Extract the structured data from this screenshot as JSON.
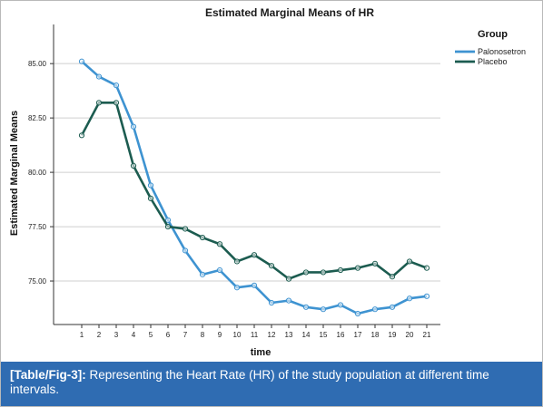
{
  "chart_data": {
    "type": "line",
    "title": "Estimated Marginal Means of HR",
    "xlabel": "time",
    "ylabel": "Estimated Marginal Means",
    "categories": [
      "1",
      "2",
      "3",
      "4",
      "5",
      "6",
      "7",
      "8",
      "9",
      "10",
      "11",
      "12",
      "13",
      "14",
      "15",
      "16",
      "17",
      "18",
      "19",
      "20",
      "21"
    ],
    "yticks": [
      "75.00",
      "77.50",
      "80.00",
      "82.50",
      "85.00"
    ],
    "ylim": [
      73.0,
      86.8
    ],
    "grid": "horizontal",
    "legend_title": "Group",
    "legend_position": "top-right",
    "series": [
      {
        "name": "Palonosetron",
        "color": "#3e93d1",
        "values": [
          85.1,
          84.4,
          84.0,
          82.1,
          79.4,
          77.8,
          76.4,
          75.3,
          75.5,
          74.7,
          74.8,
          74.0,
          74.1,
          73.8,
          73.7,
          73.9,
          73.5,
          73.7,
          73.8,
          74.2,
          74.3
        ]
      },
      {
        "name": "Placebo",
        "color": "#1c5c50",
        "values": [
          81.7,
          83.2,
          83.2,
          80.3,
          78.8,
          77.5,
          77.4,
          77.0,
          76.7,
          75.9,
          76.2,
          75.7,
          75.1,
          75.4,
          75.4,
          75.5,
          75.6,
          75.8,
          75.2,
          75.9,
          75.6
        ]
      }
    ]
  },
  "caption": {
    "ref": "[Table/Fig-3]:",
    "text": " Representing the Heart Rate (HR) of the study population at different time intervals."
  }
}
